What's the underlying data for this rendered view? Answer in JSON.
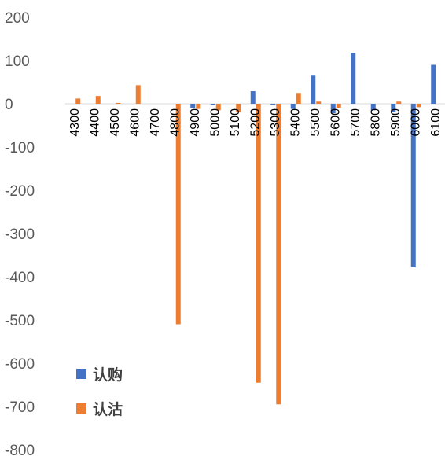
{
  "chart_data": {
    "type": "bar",
    "categories": [
      "4300",
      "4400",
      "4500",
      "4600",
      "4700",
      "4800",
      "4900",
      "5000",
      "5100",
      "5200",
      "5300",
      "5400",
      "5500",
      "5600",
      "5700",
      "5800",
      "5900",
      "6000",
      "6100"
    ],
    "series": [
      {
        "name": "认购",
        "color": "#4472C4",
        "values": [
          0,
          0,
          0,
          0,
          0,
          0,
          -10,
          -3,
          0,
          29,
          -3,
          -12,
          65,
          -22,
          118,
          -15,
          -20,
          -378,
          90
        ]
      },
      {
        "name": "认沽",
        "color": "#ED7D31",
        "values": [
          12,
          18,
          2,
          43,
          0,
          -510,
          -12,
          -15,
          -20,
          -645,
          -695,
          25,
          5,
          -10,
          0,
          0,
          5,
          -8,
          0
        ]
      }
    ],
    "ylim": [
      -800,
      200
    ],
    "yticks": [
      200,
      100,
      0,
      -100,
      -200,
      -300,
      -400,
      -500,
      -600,
      -700,
      -800
    ],
    "grid": false,
    "legend_position": "bottom-left"
  }
}
